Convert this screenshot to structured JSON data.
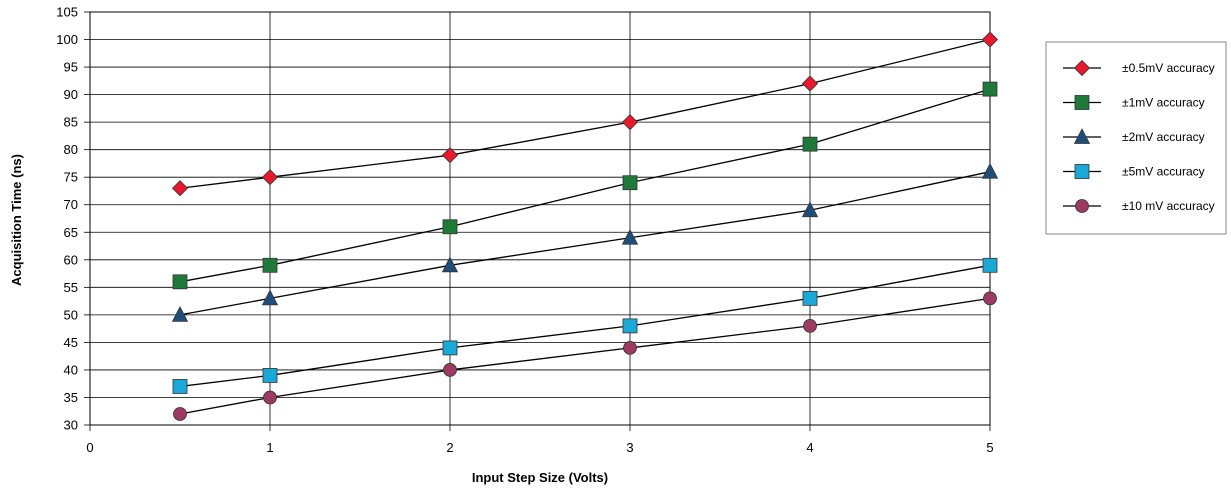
{
  "chart_data": {
    "type": "line",
    "title": "",
    "xlabel": "Input Step Size (Volts)",
    "ylabel": "Acquisition Time (ns)",
    "xlim": [
      0,
      5
    ],
    "ylim": [
      30,
      105
    ],
    "xticks": [
      0,
      1,
      2,
      3,
      4,
      5
    ],
    "yticks": [
      30,
      35,
      40,
      45,
      50,
      55,
      60,
      65,
      70,
      75,
      80,
      85,
      90,
      95,
      100,
      105
    ],
    "grid": true,
    "legend_position": "right",
    "x": [
      0.5,
      1,
      2,
      3,
      4,
      5
    ],
    "series": [
      {
        "name": "±0.5mV accuracy",
        "marker": "diamond",
        "color": "#e8192c",
        "values": [
          73,
          75,
          79,
          85,
          92,
          100
        ]
      },
      {
        "name": "±1mV accuracy",
        "marker": "square",
        "color": "#1f7a3a",
        "values": [
          56,
          59,
          66,
          74,
          81,
          91
        ]
      },
      {
        "name": "±2mV accuracy",
        "marker": "triangle",
        "color": "#1f4e7a",
        "values": [
          50,
          53,
          59,
          64,
          69,
          76
        ]
      },
      {
        "name": "±5mV accuracy",
        "marker": "square",
        "color": "#1aa8d8",
        "values": [
          37,
          39,
          44,
          48,
          53,
          59
        ]
      },
      {
        "name": "±10 mV accuracy",
        "marker": "circle",
        "color": "#9c3a62",
        "values": [
          32,
          35,
          40,
          44,
          48,
          53
        ]
      }
    ]
  }
}
